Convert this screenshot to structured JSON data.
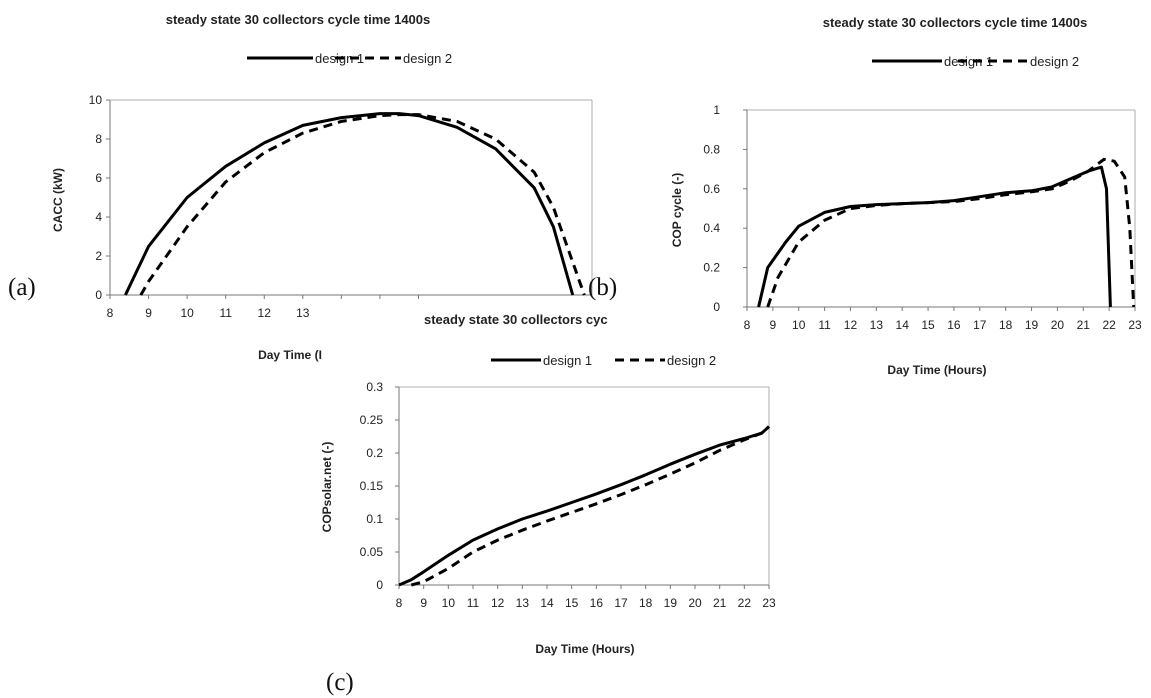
{
  "chart_data": [
    {
      "panel": "(a)",
      "type": "line",
      "title": "steady state 30 collectors cycle time 1400s",
      "xlabel": "Day Time (I",
      "ylabel": "CACC (kW)",
      "xlim": [
        8,
        20.5
      ],
      "ylim": [
        0,
        10
      ],
      "xticks": [
        8,
        9,
        10,
        11,
        12,
        13,
        14,
        15,
        16
      ],
      "yticks": [
        0,
        2,
        4,
        6,
        8,
        10
      ],
      "grid": false,
      "legend_position": "top",
      "series": [
        {
          "name": "design 1",
          "dash": "solid",
          "x": [
            8.4,
            9,
            10,
            11,
            12,
            13,
            14,
            15,
            15.5,
            16,
            17,
            18,
            19,
            19.5,
            20.0
          ],
          "y": [
            0,
            2.5,
            5.0,
            6.6,
            7.8,
            8.7,
            9.1,
            9.3,
            9.3,
            9.2,
            8.6,
            7.5,
            5.5,
            3.5,
            0
          ]
        },
        {
          "name": "design 2",
          "dash": "dashed",
          "x": [
            8.8,
            9,
            10,
            11,
            12,
            13,
            14,
            15,
            15.5,
            16,
            17,
            18,
            19,
            19.5,
            20.3
          ],
          "y": [
            0,
            0.7,
            3.5,
            5.8,
            7.3,
            8.3,
            8.9,
            9.2,
            9.25,
            9.25,
            8.9,
            8.0,
            6.3,
            4.5,
            0
          ]
        }
      ]
    },
    {
      "panel": "(b)",
      "type": "line",
      "title": "steady state 30 collectors cycle time 1400s",
      "xlabel": "Day Time (Hours)",
      "ylabel": "COP cycle (-)",
      "xlim": [
        8,
        23
      ],
      "ylim": [
        0,
        1
      ],
      "xticks": [
        8,
        9,
        10,
        11,
        12,
        13,
        14,
        15,
        16,
        17,
        18,
        19,
        20,
        21,
        22,
        23
      ],
      "yticks": [
        0,
        0.2,
        0.4,
        0.6,
        0.8,
        1
      ],
      "grid": false,
      "legend_position": "top",
      "series": [
        {
          "name": "design 1",
          "dash": "solid",
          "x": [
            8.45,
            8.8,
            9.5,
            10,
            11,
            12,
            13,
            14,
            15,
            16,
            17,
            18,
            19,
            19.8,
            20.5,
            21.2,
            21.7,
            21.9,
            22.05
          ],
          "y": [
            0,
            0.2,
            0.33,
            0.41,
            0.48,
            0.51,
            0.52,
            0.525,
            0.53,
            0.54,
            0.56,
            0.58,
            0.59,
            0.61,
            0.65,
            0.69,
            0.71,
            0.6,
            0
          ]
        },
        {
          "name": "design 2",
          "dash": "dashed",
          "x": [
            8.8,
            9.2,
            10,
            11,
            12,
            13,
            14,
            15,
            16,
            17,
            18,
            19,
            19.8,
            20.5,
            21.2,
            21.8,
            22.2,
            22.6,
            22.8,
            22.95
          ],
          "y": [
            0,
            0.15,
            0.33,
            0.44,
            0.5,
            0.515,
            0.525,
            0.53,
            0.535,
            0.55,
            0.57,
            0.585,
            0.6,
            0.64,
            0.69,
            0.75,
            0.74,
            0.66,
            0.4,
            0
          ]
        }
      ]
    },
    {
      "panel": "(c)",
      "type": "line",
      "title": "steady state 30 collectors cyc",
      "xlabel": "Day Time (Hours)",
      "ylabel": "COPsolar.net (-)",
      "xlim": [
        8,
        23
      ],
      "ylim": [
        0,
        0.3
      ],
      "xticks": [
        8,
        9,
        10,
        11,
        12,
        13,
        14,
        15,
        16,
        17,
        18,
        19,
        20,
        21,
        22,
        23
      ],
      "yticks": [
        0,
        0.05,
        0.1,
        0.15,
        0.2,
        0.25,
        0.3
      ],
      "grid": false,
      "legend_position": "top",
      "series": [
        {
          "name": "design 1",
          "dash": "solid",
          "x": [
            8,
            8.5,
            9,
            10,
            11,
            12,
            13,
            14,
            15,
            16,
            17,
            18,
            19,
            20,
            21,
            22,
            22.7,
            23
          ],
          "y": [
            0,
            0.008,
            0.02,
            0.045,
            0.068,
            0.085,
            0.1,
            0.112,
            0.125,
            0.138,
            0.152,
            0.167,
            0.183,
            0.198,
            0.212,
            0.222,
            0.23,
            0.24
          ]
        },
        {
          "name": "design 2",
          "dash": "dashed",
          "x": [
            8.5,
            9,
            10,
            11,
            12,
            13,
            14,
            15,
            16,
            17,
            18,
            19,
            20,
            21,
            22,
            22.7,
            23
          ],
          "y": [
            0,
            0.005,
            0.025,
            0.05,
            0.068,
            0.083,
            0.097,
            0.11,
            0.123,
            0.137,
            0.152,
            0.168,
            0.185,
            0.204,
            0.22,
            0.23,
            0.24
          ]
        }
      ]
    }
  ],
  "panel_labels": [
    "(a)",
    "(b)",
    "(c)"
  ]
}
